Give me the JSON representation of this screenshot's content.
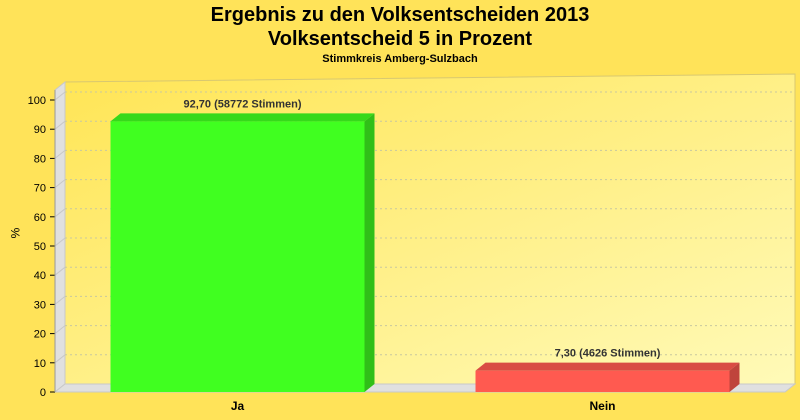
{
  "chart_data": {
    "type": "bar",
    "title": "Ergebnis zu den Volksentscheiden 2013",
    "title2": "Volksentscheid 5 in Prozent",
    "subtitle": "Stimmkreis Amberg-Sulzbach",
    "ylabel": "%",
    "categories": [
      "Ja",
      "Nein"
    ],
    "values": [
      92.7,
      7.3
    ],
    "data_labels": [
      "92,70 (58772 Stimmen)",
      "7,30 (4626 Stimmen)"
    ],
    "bar_colors": [
      "#40ff20",
      "#ff5a50"
    ],
    "ylim": [
      0,
      100
    ],
    "yticks": [
      0,
      10,
      20,
      30,
      40,
      50,
      60,
      70,
      80,
      90,
      100
    ],
    "grid": true
  }
}
